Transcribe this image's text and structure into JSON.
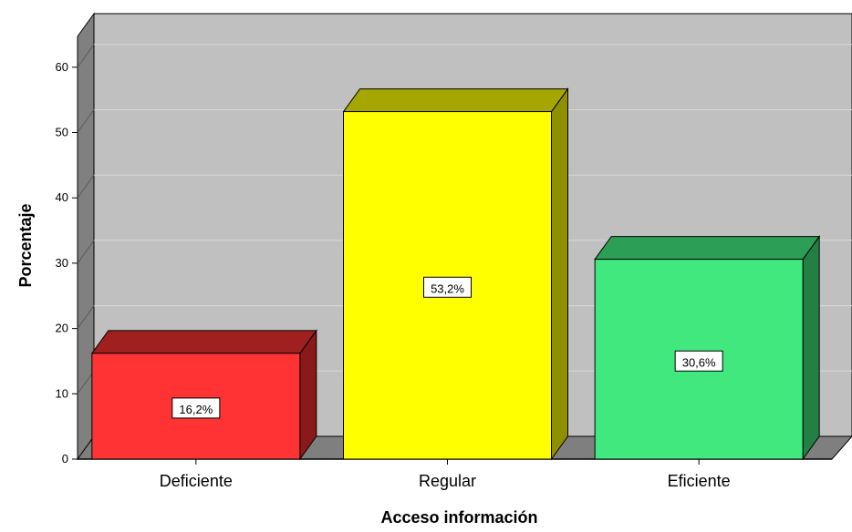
{
  "chart_data": {
    "type": "bar",
    "title": "",
    "xlabel": "Acceso información",
    "ylabel": "Porcentaje",
    "categories": [
      "Deficiente",
      "Regular",
      "Eficiente"
    ],
    "values": [
      16.2,
      53.2,
      30.6
    ],
    "data_labels": [
      "16,2%",
      "53,2%",
      "30,6%"
    ],
    "ylim": [
      0,
      65
    ],
    "yticks": [
      0,
      10,
      20,
      30,
      40,
      50,
      60
    ],
    "grid": true,
    "style": "3d",
    "colors": {
      "bars": [
        "#ff3333",
        "#ffff00",
        "#40e87e"
      ],
      "bars_top": [
        "#a01f1f",
        "#a6a600",
        "#2c9e56"
      ],
      "bars_side": [
        "#8a1a1a",
        "#8f8f00",
        "#247f45"
      ],
      "plot_background": "#c0c0c0",
      "floor": "#7f7f7f",
      "wall_left": "#808080",
      "gridline": "#d9d9d9"
    }
  }
}
